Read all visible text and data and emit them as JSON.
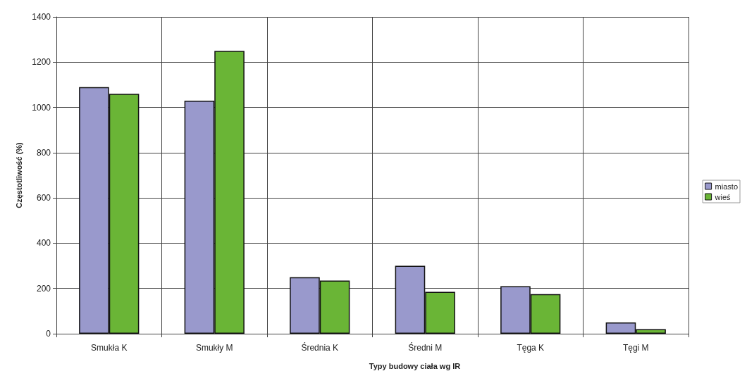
{
  "chart_data": {
    "type": "bar",
    "xlabel": "Typy budowy ciała wg IR",
    "ylabel": "Częstotliwość (%)",
    "categories": [
      "Smukła K",
      "Smukły M",
      "Średnia K",
      "Średni M",
      "Tęga K",
      "Tęgi M"
    ],
    "series": [
      {
        "name": "miasto",
        "color": "#9999cc",
        "values": [
          1090,
          1030,
          250,
          300,
          210,
          50
        ]
      },
      {
        "name": "wieś",
        "color": "#6ab536",
        "values": [
          1060,
          1250,
          235,
          185,
          175,
          20
        ]
      }
    ],
    "ylim": [
      0,
      1400
    ],
    "yticks": [
      0,
      200,
      400,
      600,
      800,
      1000,
      1200,
      1400
    ],
    "grid": true,
    "legend": "right"
  }
}
